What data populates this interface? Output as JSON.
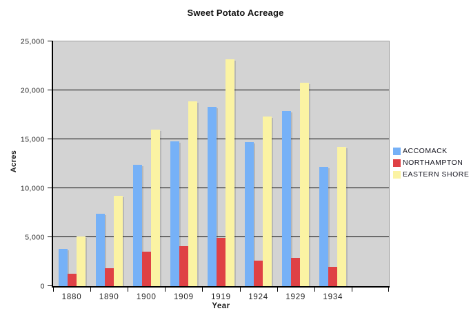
{
  "chart_data": {
    "type": "bar",
    "title": "Sweet Potato Acreage",
    "xlabel": "Year",
    "ylabel": "Acres",
    "ylim": [
      0,
      25000
    ],
    "ytick_step": 5000,
    "ytick_labels": [
      "0",
      "5,000",
      "10,000",
      "15,000",
      "20,000",
      "25,000"
    ],
    "grid": true,
    "legend_position": "right",
    "plot_background": "#D3D3D3",
    "categories": [
      "1880",
      "1890",
      "1900",
      "1909",
      "1919",
      "1924",
      "1929",
      "1934"
    ],
    "series": [
      {
        "name": "ACCOMACK",
        "color": "#76B1F7",
        "values": [
          3800,
          7400,
          12400,
          14800,
          18300,
          14700,
          17900,
          12200
        ]
      },
      {
        "name": "NORTHAMPTON",
        "color": "#DF4145",
        "values": [
          1250,
          1800,
          3500,
          4100,
          4900,
          2600,
          2900,
          2000
        ]
      },
      {
        "name": "EASTERN SHORE",
        "color": "#FBF3A3",
        "values": [
          5100,
          9250,
          16000,
          18900,
          23200,
          17300,
          20800,
          14200
        ]
      }
    ]
  }
}
